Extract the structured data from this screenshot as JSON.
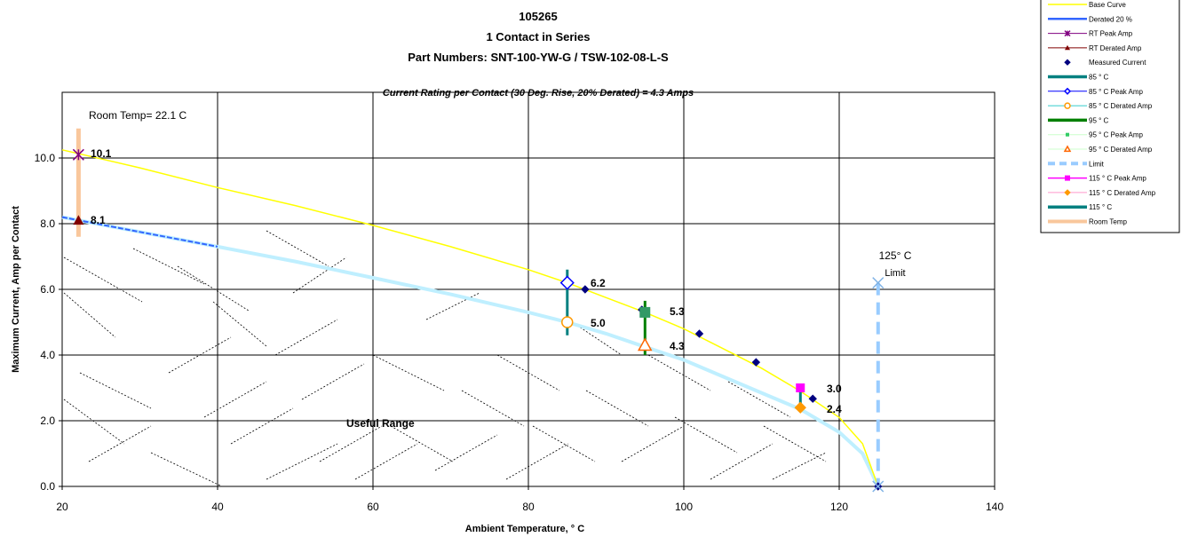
{
  "chart_data": {
    "type": "line",
    "title_lines": [
      "105265",
      "1 Contact in Series",
      "Part Numbers: SNT-100-YW-G / TSW-102-08-L-S"
    ],
    "subtitle": "Current Rating per Contact (30 Deg. Rise, 20% Derated)  = 4.3 Amps",
    "xlabel": "Ambient Temperature,  ° C",
    "ylabel": "Maximum Current, Amp per Contact",
    "xlim": [
      20,
      140
    ],
    "ylim": [
      0,
      12
    ],
    "xticks": [
      "20",
      "40",
      "60",
      "80",
      "100",
      "120",
      "140"
    ],
    "yticks": [
      "0.0",
      "2.0",
      "4.0",
      "6.0",
      "8.0",
      "10.0"
    ],
    "grid": true,
    "legend_position": "top-right",
    "annotations": {
      "room_temp": "Room Temp= 22.1 C",
      "useful_range": "Useful Range",
      "limit_temp": "125° C",
      "limit_word": "Limit"
    },
    "point_labels": [
      "10.1",
      "8.1",
      "6.2",
      "5.0",
      "5.3",
      "4.3",
      "3.0",
      "2.4"
    ],
    "series": [
      {
        "name": "Base Curve",
        "color": "#ffff00",
        "points": [
          [
            20,
            10.25
          ],
          [
            30,
            9.7
          ],
          [
            40,
            9.1
          ],
          [
            50,
            8.55
          ],
          [
            60,
            7.95
          ],
          [
            70,
            7.3
          ],
          [
            80,
            6.6
          ],
          [
            85,
            6.2
          ],
          [
            90,
            5.75
          ],
          [
            95,
            5.3
          ],
          [
            100,
            4.8
          ],
          [
            105,
            4.2
          ],
          [
            110,
            3.6
          ],
          [
            115,
            2.9
          ],
          [
            120,
            2.1
          ],
          [
            123,
            1.3
          ],
          [
            125,
            0
          ]
        ]
      },
      {
        "name": "Derated 20 %",
        "color": "#3366ff",
        "points": [
          [
            20,
            8.2
          ],
          [
            30,
            7.75
          ],
          [
            40,
            7.3
          ],
          [
            50,
            6.85
          ],
          [
            60,
            6.35
          ],
          [
            70,
            5.85
          ],
          [
            80,
            5.3
          ],
          [
            85,
            5.0
          ],
          [
            90,
            4.65
          ],
          [
            95,
            4.25
          ],
          [
            100,
            3.85
          ],
          [
            105,
            3.35
          ],
          [
            110,
            2.85
          ],
          [
            115,
            2.35
          ],
          [
            120,
            1.65
          ],
          [
            123,
            1.0
          ],
          [
            125,
            0
          ]
        ]
      },
      {
        "name": "RT Peak Amp",
        "color": "#800080",
        "points": [
          [
            22.1,
            10.1
          ]
        ]
      },
      {
        "name": "RT Derated Amp",
        "color": "#800000",
        "points": [
          [
            22.1,
            8.1
          ]
        ]
      },
      {
        "name": "Measured Current",
        "color": "#000080",
        "points": [
          [
            87.3,
            6.0
          ],
          [
            94.6,
            5.38
          ],
          [
            102,
            4.65
          ],
          [
            109.3,
            3.78
          ],
          [
            116.6,
            2.67
          ],
          [
            125,
            0
          ]
        ]
      },
      {
        "name": "85  ° C",
        "color": "#008080",
        "points": [
          [
            85,
            6.6
          ],
          [
            85,
            4.6
          ]
        ]
      },
      {
        "name": "85  ° C Peak Amp",
        "color": "#0000ff",
        "points": [
          [
            85,
            6.2
          ]
        ]
      },
      {
        "name": "85  ° C Derated Amp",
        "color": "#ff9900",
        "points": [
          [
            85,
            5.0
          ]
        ]
      },
      {
        "name": "95  ° C",
        "color": "#008000",
        "points": [
          [
            95,
            5.65
          ],
          [
            95,
            4.0
          ]
        ]
      },
      {
        "name": "95  ° C Peak Amp",
        "color": "#33cc66",
        "points": [
          [
            95,
            5.3
          ]
        ]
      },
      {
        "name": "95  ° C Derated Amp",
        "color": "#ff6600",
        "points": [
          [
            95,
            4.3
          ]
        ]
      },
      {
        "name": "Limit",
        "color": "#99ccff",
        "points": [
          [
            125,
            6.2
          ],
          [
            125,
            0
          ]
        ]
      },
      {
        "name": "115  ° C Peak Amp",
        "color": "#ff00ff",
        "points": [
          [
            115,
            3.0
          ]
        ]
      },
      {
        "name": "115  ° C Derated Amp",
        "color": "#ff9900",
        "points": [
          [
            115,
            2.4
          ]
        ]
      },
      {
        "name": "115  ° C",
        "color": "#008080",
        "points": [
          [
            115,
            3.1
          ],
          [
            115,
            2.3
          ]
        ]
      },
      {
        "name": "Room Temp",
        "color": "#f9c79c",
        "points": [
          [
            22.1,
            10.9
          ],
          [
            22.1,
            7.6
          ]
        ]
      }
    ]
  }
}
